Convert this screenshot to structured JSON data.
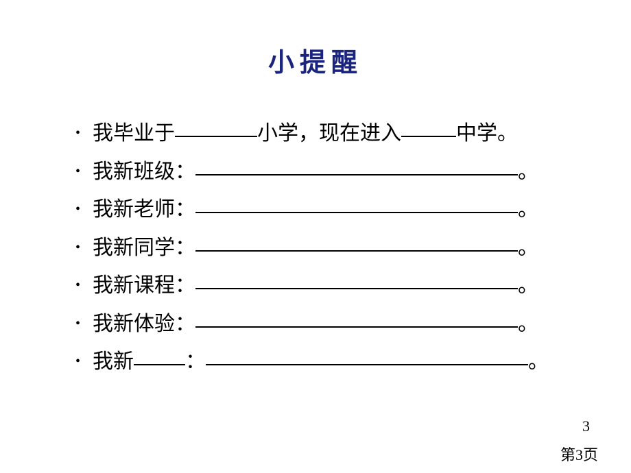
{
  "title": "小提醒",
  "title_color": "#1a237e",
  "title_fontsize": 38,
  "body_fontsize": 30,
  "text_color": "#000000",
  "background_color": "#ffffff",
  "items": [
    {
      "parts": [
        {
          "type": "text",
          "value": "我毕业于"
        },
        {
          "type": "blank",
          "width": "short"
        },
        {
          "type": "text",
          "value": "小学，现在进入"
        },
        {
          "type": "blank",
          "width": "shorter"
        },
        {
          "type": "text",
          "value": "中学。"
        }
      ]
    },
    {
      "parts": [
        {
          "type": "text",
          "value": "我新班级："
        },
        {
          "type": "blank",
          "width": "long"
        },
        {
          "type": "text",
          "value": "。"
        }
      ]
    },
    {
      "parts": [
        {
          "type": "text",
          "value": "我新老师："
        },
        {
          "type": "blank",
          "width": "long"
        },
        {
          "type": "text",
          "value": "。"
        }
      ]
    },
    {
      "parts": [
        {
          "type": "text",
          "value": "我新同学："
        },
        {
          "type": "blank",
          "width": "long"
        },
        {
          "type": "text",
          "value": "。"
        }
      ]
    },
    {
      "parts": [
        {
          "type": "text",
          "value": "我新课程："
        },
        {
          "type": "blank",
          "width": "long"
        },
        {
          "type": "text",
          "value": "。"
        }
      ]
    },
    {
      "parts": [
        {
          "type": "text",
          "value": "我新体验："
        },
        {
          "type": "blank",
          "width": "long"
        },
        {
          "type": "text",
          "value": "。"
        }
      ]
    },
    {
      "parts": [
        {
          "type": "text",
          "value": "我新"
        },
        {
          "type": "blank",
          "width": "tiny"
        },
        {
          "type": "text",
          "value": "："
        },
        {
          "type": "blank",
          "width": "long"
        },
        {
          "type": "text",
          "value": "。"
        }
      ]
    }
  ],
  "slide_number": "3",
  "page_label": "第3页",
  "bullet_char": "•"
}
